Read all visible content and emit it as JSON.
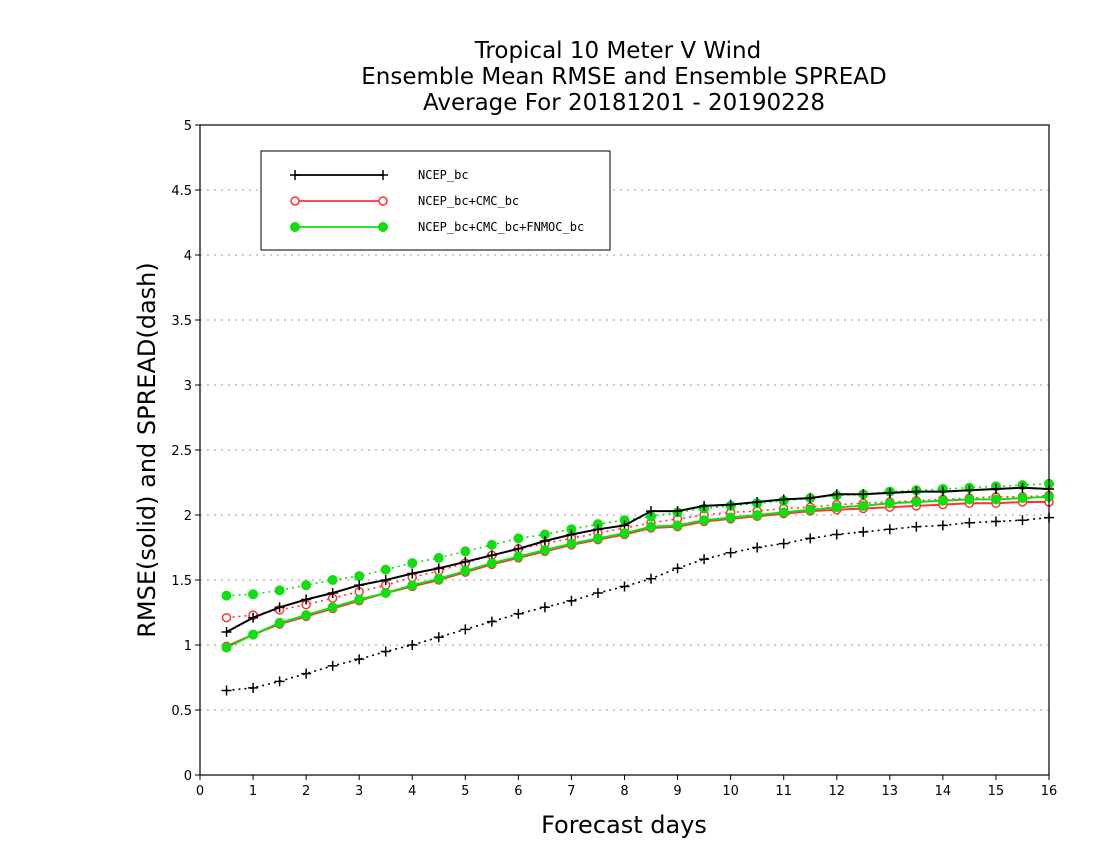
{
  "chart_data": {
    "type": "line",
    "title": [
      "Tropical 10 Meter V Wind",
      "Ensemble Mean RMSE and Ensemble SPREAD",
      "Average For 20181201 - 20190228"
    ],
    "xlabel": "Forecast days",
    "ylabel": "RMSE(solid) and SPREAD(dash)",
    "xlim": [
      0,
      16
    ],
    "ylim": [
      0,
      5
    ],
    "xticks": [
      "0",
      "1",
      "2",
      "3",
      "4",
      "5",
      "6",
      "7",
      "8",
      "9",
      "10",
      "11",
      "12",
      "13",
      "14",
      "15",
      "16"
    ],
    "yticks": [
      "0",
      "0.5",
      "1",
      "1.5",
      "2",
      "2.5",
      "3",
      "3.5",
      "4",
      "4.5",
      "5"
    ],
    "grid": "horizontal dotted",
    "legend": {
      "placement": "top-left",
      "entries": [
        "NCEP_bc",
        "NCEP_bc+CMC_bc",
        "NCEP_bc+CMC_bc+FNMOC_bc"
      ]
    },
    "x": [
      0.5,
      1,
      1.5,
      2,
      2.5,
      3,
      3.5,
      4,
      4.5,
      5,
      5.5,
      6,
      6.5,
      7,
      7.5,
      8,
      8.5,
      9,
      9.5,
      10,
      10.5,
      11,
      11.5,
      12,
      12.5,
      13,
      13.5,
      14,
      14.5,
      15,
      15.5,
      16
    ],
    "series": [
      {
        "name": "NCEP_bc",
        "metric": "RMSE",
        "style": "solid",
        "marker": "plus",
        "color": "#000000",
        "values": [
          1.1,
          1.21,
          1.29,
          1.35,
          1.4,
          1.46,
          1.5,
          1.55,
          1.59,
          1.64,
          1.69,
          1.74,
          1.8,
          1.85,
          1.89,
          1.92,
          2.03,
          2.03,
          2.07,
          2.08,
          2.1,
          2.12,
          2.13,
          2.16,
          2.16,
          2.17,
          2.18,
          2.18,
          2.19,
          2.2,
          2.21,
          2.2
        ]
      },
      {
        "name": "NCEP_bc+CMC_bc",
        "metric": "RMSE",
        "style": "solid",
        "marker": "open-circle",
        "color": "#ff3333",
        "values": [
          0.99,
          1.08,
          1.16,
          1.22,
          1.28,
          1.34,
          1.4,
          1.45,
          1.5,
          1.56,
          1.62,
          1.67,
          1.72,
          1.77,
          1.81,
          1.85,
          1.9,
          1.91,
          1.95,
          1.97,
          1.99,
          2.01,
          2.03,
          2.04,
          2.05,
          2.06,
          2.07,
          2.08,
          2.09,
          2.09,
          2.1,
          2.1
        ]
      },
      {
        "name": "NCEP_bc+CMC_bc+FNMOC_bc",
        "metric": "RMSE",
        "style": "solid",
        "marker": "filled-circle",
        "color": "#11dd11",
        "values": [
          0.98,
          1.08,
          1.17,
          1.23,
          1.29,
          1.35,
          1.4,
          1.46,
          1.51,
          1.57,
          1.63,
          1.68,
          1.73,
          1.78,
          1.82,
          1.86,
          1.91,
          1.92,
          1.96,
          1.98,
          2.0,
          2.02,
          2.04,
          2.06,
          2.07,
          2.09,
          2.1,
          2.11,
          2.12,
          2.12,
          2.13,
          2.14
        ]
      },
      {
        "name": "NCEP_bc",
        "metric": "SPREAD",
        "style": "dash",
        "marker": "plus",
        "color": "#000000",
        "values": [
          0.65,
          0.67,
          0.72,
          0.78,
          0.84,
          0.89,
          0.95,
          1.0,
          1.06,
          1.12,
          1.18,
          1.24,
          1.29,
          1.34,
          1.4,
          1.45,
          1.51,
          1.59,
          1.66,
          1.71,
          1.75,
          1.78,
          1.82,
          1.85,
          1.87,
          1.89,
          1.91,
          1.92,
          1.94,
          1.95,
          1.96,
          1.98
        ]
      },
      {
        "name": "NCEP_bc+CMC_bc",
        "metric": "SPREAD",
        "style": "dash",
        "marker": "open-circle",
        "color": "#ff3333",
        "values": [
          1.21,
          1.23,
          1.27,
          1.31,
          1.36,
          1.41,
          1.46,
          1.52,
          1.57,
          1.63,
          1.69,
          1.74,
          1.78,
          1.82,
          1.86,
          1.9,
          1.94,
          1.97,
          2.0,
          2.02,
          2.03,
          2.05,
          2.06,
          2.08,
          2.09,
          2.1,
          2.11,
          2.12,
          2.13,
          2.14,
          2.14,
          2.15
        ]
      },
      {
        "name": "NCEP_bc+CMC_bc+FNMOC_bc",
        "metric": "SPREAD",
        "style": "dash",
        "marker": "filled-circle",
        "color": "#11dd11",
        "values": [
          1.38,
          1.39,
          1.42,
          1.46,
          1.5,
          1.53,
          1.58,
          1.63,
          1.67,
          1.72,
          1.77,
          1.82,
          1.85,
          1.89,
          1.93,
          1.96,
          1.99,
          2.02,
          2.05,
          2.07,
          2.09,
          2.11,
          2.13,
          2.15,
          2.16,
          2.18,
          2.19,
          2.2,
          2.21,
          2.22,
          2.23,
          2.24
        ]
      }
    ]
  }
}
